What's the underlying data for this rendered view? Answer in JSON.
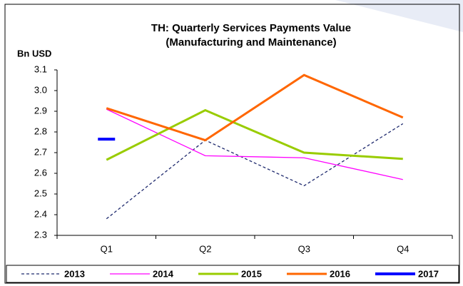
{
  "chart_data": {
    "type": "line",
    "title": [
      "TH: Quarterly Services Payments Value",
      "(Manufacturing and Maintenance)"
    ],
    "y_label": "Bn USD",
    "categories": [
      "Q1",
      "Q2",
      "Q3",
      "Q4"
    ],
    "series": [
      {
        "name": "2013",
        "color": "#1f2a6e",
        "line_width": 1.3,
        "dashed": true,
        "values": [
          2.38,
          2.76,
          2.54,
          2.84
        ]
      },
      {
        "name": "2014",
        "color": "#ff00ff",
        "line_width": 1.3,
        "values": [
          2.91,
          2.685,
          2.675,
          2.57
        ]
      },
      {
        "name": "2015",
        "color": "#99cc00",
        "line_width": 3,
        "values": [
          2.665,
          2.905,
          2.7,
          2.67
        ]
      },
      {
        "name": "2016",
        "color": "#ff6600",
        "line_width": 3,
        "values": [
          2.915,
          2.76,
          3.075,
          2.87
        ]
      },
      {
        "name": "2017",
        "color": "#0000ff",
        "line_width": 4,
        "values": [
          2.765,
          null,
          null,
          null
        ]
      }
    ],
    "ylim": [
      2.3,
      3.1
    ],
    "yticks": [
      2.3,
      2.4,
      2.5,
      2.6,
      2.7,
      2.8,
      2.9,
      {
        "value": 3,
        "label": "3.0"
      },
      3.1
    ],
    "legend": "bottom"
  }
}
